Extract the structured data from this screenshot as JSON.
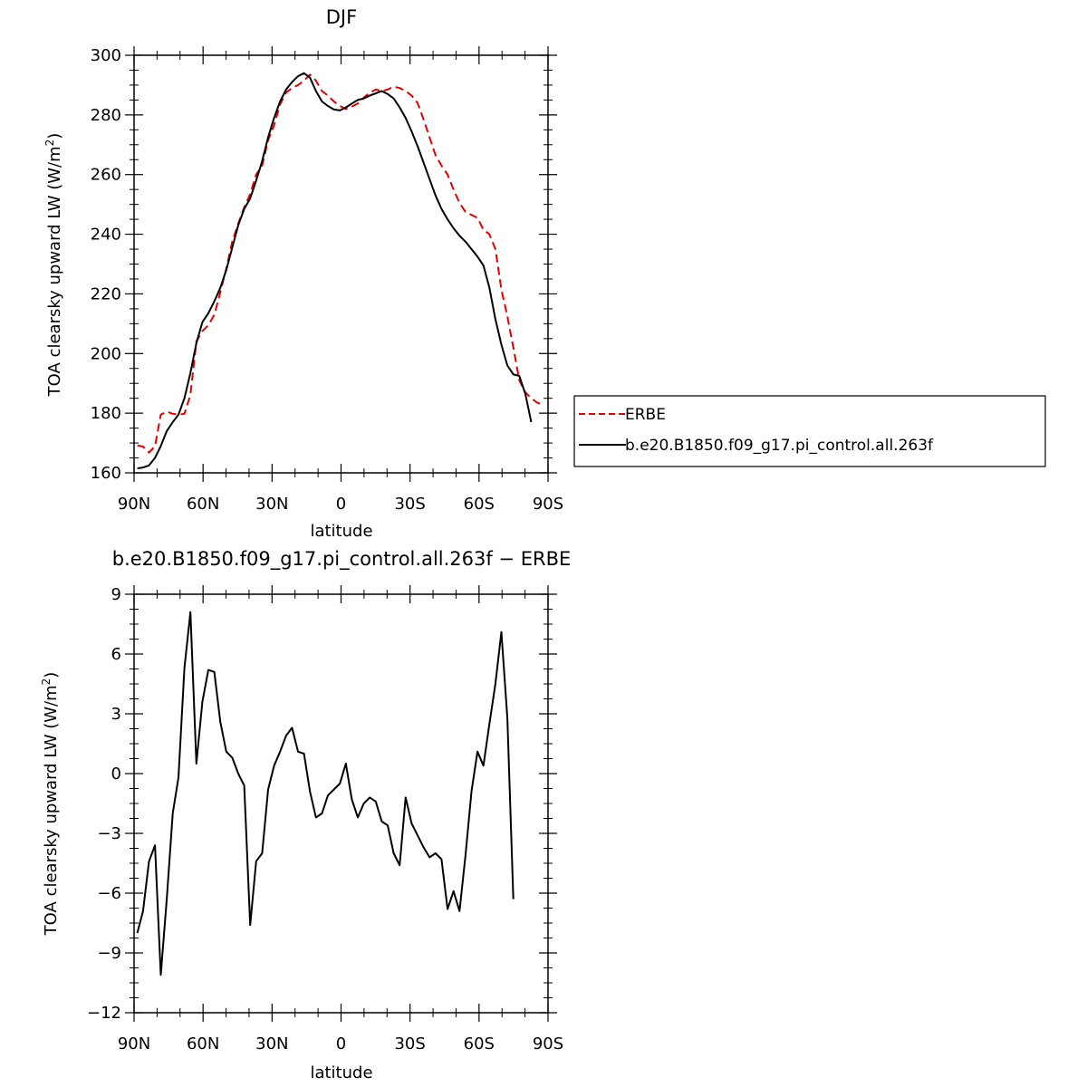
{
  "chart_data": [
    {
      "type": "line",
      "title": "DJF",
      "xlabel": "latitude",
      "ylabel_main": "TOA clearsky upward LW (W/m",
      "ylabel_sup": "2",
      "ylabel_end": ")",
      "xlim": [
        90,
        -90
      ],
      "ylim": [
        160,
        300
      ],
      "yticks": [
        160,
        180,
        200,
        220,
        240,
        260,
        280,
        300
      ],
      "xticks": [
        90,
        60,
        30,
        0,
        -30,
        -60,
        -90
      ],
      "xtick_labels": [
        "90N",
        "60N",
        "30N",
        "0",
        "30S",
        "60S",
        "90S"
      ],
      "grid": false,
      "legend_position": "right",
      "series": [
        {
          "name": "ERBE",
          "color": "#e00000",
          "dash": true,
          "points": [
            [
              88.6,
              169.2
            ],
            [
              86.1,
              168.8
            ],
            [
              83.5,
              166.8
            ],
            [
              80.9,
              168.9
            ],
            [
              78.4,
              179.5
            ],
            [
              75.8,
              180.5
            ],
            [
              73.2,
              179.8
            ],
            [
              70.7,
              179.5
            ],
            [
              68.1,
              179.8
            ],
            [
              65.5,
              186.1
            ],
            [
              62.9,
              204.1
            ],
            [
              60.3,
              207.5
            ],
            [
              57.7,
              209.5
            ],
            [
              55.1,
              213.0
            ],
            [
              52.5,
              220.5
            ],
            [
              49.9,
              228.5
            ],
            [
              47.3,
              237.5
            ],
            [
              44.7,
              243.5
            ],
            [
              42.1,
              249.0
            ],
            [
              39.5,
              253.5
            ],
            [
              36.9,
              260.0
            ],
            [
              34.3,
              263.0
            ],
            [
              31.7,
              271.5
            ],
            [
              29.1,
              276.5
            ],
            [
              26.5,
              283.5
            ],
            [
              23.9,
              287.5
            ],
            [
              21.3,
              289.0
            ],
            [
              18.7,
              290.0
            ],
            [
              16.1,
              291.5
            ],
            [
              13.5,
              293.5
            ],
            [
              10.9,
              291.5
            ],
            [
              8.3,
              288.0
            ],
            [
              5.7,
              286.5
            ],
            [
              3.1,
              284.5
            ],
            [
              0.5,
              283.0
            ],
            [
              -2.1,
              282.0
            ],
            [
              -4.7,
              282.8
            ],
            [
              -7.3,
              283.8
            ],
            [
              -9.9,
              285.8
            ],
            [
              -12.5,
              287.5
            ],
            [
              -15.1,
              288.5
            ],
            [
              -17.7,
              288.0
            ],
            [
              -20.3,
              288.5
            ],
            [
              -22.9,
              289.5
            ],
            [
              -25.5,
              289.0
            ],
            [
              -28.1,
              288.0
            ],
            [
              -30.7,
              286.5
            ],
            [
              -33.3,
              284.0
            ],
            [
              -35.9,
              278.5
            ],
            [
              -38.5,
              272.5
            ],
            [
              -41.1,
              266.5
            ],
            [
              -43.7,
              263.0
            ],
            [
              -46.3,
              260.0
            ],
            [
              -48.9,
              255.0
            ],
            [
              -51.5,
              250.5
            ],
            [
              -54.1,
              247.5
            ],
            [
              -56.7,
              246.5
            ],
            [
              -59.3,
              245.5
            ],
            [
              -61.9,
              241.5
            ],
            [
              -64.5,
              240.0
            ],
            [
              -67.1,
              235.0
            ],
            [
              -69.7,
              221.5
            ],
            [
              -72.3,
              212.5
            ],
            [
              -74.9,
              202.0
            ],
            [
              -77.5,
              191.0
            ],
            [
              -80.1,
              187.0
            ],
            [
              -82.7,
              185.0
            ],
            [
              -85.3,
              183.5
            ],
            [
              -87.9,
              182.8
            ]
          ]
        },
        {
          "name": "b.e20.B1850.f09_g17.pi_control.all.263f",
          "color": "#000000",
          "dash": false,
          "points": [
            [
              88.6,
              161.5
            ],
            [
              86.1,
              161.8
            ],
            [
              83.5,
              162.5
            ],
            [
              80.9,
              165.0
            ],
            [
              78.4,
              169.0
            ],
            [
              75.8,
              174.0
            ],
            [
              73.2,
              177.0
            ],
            [
              70.7,
              179.5
            ],
            [
              68.1,
              185.0
            ],
            [
              65.5,
              193.5
            ],
            [
              62.9,
              203.5
            ],
            [
              60.3,
              210.5
            ],
            [
              57.7,
              213.5
            ],
            [
              55.1,
              217.5
            ],
            [
              52.5,
              222.0
            ],
            [
              49.9,
              228.0
            ],
            [
              47.3,
              235.5
            ],
            [
              44.7,
              243.0
            ],
            [
              42.1,
              248.5
            ],
            [
              39.5,
              252.0
            ],
            [
              36.9,
              258.0
            ],
            [
              34.3,
              264.5
            ],
            [
              31.7,
              272.5
            ],
            [
              29.1,
              279.0
            ],
            [
              26.5,
              284.5
            ],
            [
              23.9,
              288.5
            ],
            [
              21.3,
              291.0
            ],
            [
              18.7,
              293.0
            ],
            [
              16.1,
              294.0
            ],
            [
              13.5,
              292.5
            ],
            [
              10.9,
              288.0
            ],
            [
              8.3,
              284.5
            ],
            [
              5.7,
              283.0
            ],
            [
              3.1,
              281.8
            ],
            [
              0.5,
              281.5
            ],
            [
              -2.1,
              282.5
            ],
            [
              -4.7,
              283.8
            ],
            [
              -7.3,
              285.0
            ],
            [
              -9.9,
              285.5
            ],
            [
              -12.5,
              286.5
            ],
            [
              -15.1,
              287.2
            ],
            [
              -17.7,
              288.0
            ],
            [
              -20.3,
              287.0
            ],
            [
              -22.9,
              285.5
            ],
            [
              -25.5,
              282.5
            ],
            [
              -28.1,
              279.0
            ],
            [
              -30.7,
              274.5
            ],
            [
              -33.3,
              269.5
            ],
            [
              -35.9,
              264.0
            ],
            [
              -38.5,
              258.5
            ],
            [
              -41.1,
              253.0
            ],
            [
              -43.7,
              248.5
            ],
            [
              -46.3,
              245.0
            ],
            [
              -48.9,
              242.0
            ],
            [
              -51.5,
              239.5
            ],
            [
              -54.1,
              237.5
            ],
            [
              -56.7,
              235.0
            ],
            [
              -59.3,
              232.5
            ],
            [
              -61.9,
              229.5
            ],
            [
              -64.5,
              222.0
            ],
            [
              -67.1,
              211.5
            ],
            [
              -69.7,
              203.0
            ],
            [
              -72.3,
              196.0
            ],
            [
              -74.9,
              193.0
            ],
            [
              -77.5,
              192.5
            ],
            [
              -80.1,
              186.5
            ],
            [
              -82.7,
              177.0
            ]
          ]
        }
      ]
    },
    {
      "type": "line",
      "title": "b.e20.B1850.f09_g17.pi_control.all.263f − ERBE",
      "xlabel": "latitude",
      "ylabel_main": "TOA clearsky upward LW (W/m",
      "ylabel_sup": "2",
      "ylabel_end": ")",
      "xlim": [
        90,
        -90
      ],
      "ylim": [
        -12,
        9
      ],
      "yticks": [
        -12,
        -9,
        -6,
        -3,
        0,
        3,
        6,
        9
      ],
      "ytick_labels": [
        "−12",
        "−9",
        "−6",
        "−3",
        "0",
        "3",
        "6",
        "9"
      ],
      "xticks": [
        90,
        60,
        30,
        0,
        -30,
        -60,
        -90
      ],
      "xtick_labels": [
        "90N",
        "60N",
        "30N",
        "0",
        "30S",
        "60S",
        "90S"
      ],
      "grid": false,
      "series": [
        {
          "color": "#000000",
          "dash": false,
          "points": [
            [
              88.6,
              -8.0
            ],
            [
              86.1,
              -6.9
            ],
            [
              83.5,
              -4.4
            ],
            [
              80.9,
              -3.6
            ],
            [
              78.4,
              -10.1
            ],
            [
              75.8,
              -6.3
            ],
            [
              73.2,
              -2.0
            ],
            [
              70.7,
              -0.2
            ],
            [
              68.1,
              5.3
            ],
            [
              65.5,
              8.1
            ],
            [
              62.9,
              0.5
            ],
            [
              60.3,
              3.6
            ],
            [
              57.7,
              5.2
            ],
            [
              55.1,
              5.1
            ],
            [
              52.5,
              2.6
            ],
            [
              49.9,
              1.1
            ],
            [
              47.3,
              0.8
            ],
            [
              44.7,
              0.0
            ],
            [
              42.1,
              -0.6
            ],
            [
              39.5,
              -7.6
            ],
            [
              36.9,
              -4.4
            ],
            [
              34.3,
              -4.0
            ],
            [
              31.7,
              -0.8
            ],
            [
              29.1,
              0.4
            ],
            [
              26.5,
              1.1
            ],
            [
              23.9,
              1.9
            ],
            [
              21.3,
              2.3
            ],
            [
              18.7,
              1.1
            ],
            [
              16.1,
              1.0
            ],
            [
              13.5,
              -0.9
            ],
            [
              10.9,
              -2.2
            ],
            [
              8.3,
              -2.0
            ],
            [
              5.7,
              -1.1
            ],
            [
              3.1,
              -0.8
            ],
            [
              0.5,
              -0.5
            ],
            [
              -2.1,
              0.5
            ],
            [
              -4.7,
              -1.3
            ],
            [
              -7.3,
              -2.2
            ],
            [
              -9.9,
              -1.5
            ],
            [
              -12.5,
              -1.2
            ],
            [
              -15.1,
              -1.4
            ],
            [
              -17.7,
              -2.4
            ],
            [
              -20.3,
              -2.6
            ],
            [
              -22.9,
              -4.0
            ],
            [
              -25.5,
              -4.6
            ],
            [
              -28.1,
              -1.2
            ],
            [
              -30.7,
              -2.5
            ],
            [
              -33.3,
              -3.1
            ],
            [
              -35.9,
              -3.7
            ],
            [
              -38.5,
              -4.2
            ],
            [
              -41.1,
              -4.0
            ],
            [
              -43.7,
              -4.3
            ],
            [
              -46.3,
              -6.8
            ],
            [
              -48.9,
              -5.9
            ],
            [
              -51.5,
              -6.9
            ],
            [
              -54.1,
              -4.1
            ],
            [
              -56.7,
              -0.9
            ],
            [
              -59.3,
              1.1
            ],
            [
              -61.9,
              0.4
            ],
            [
              -64.5,
              2.5
            ],
            [
              -67.1,
              4.5
            ],
            [
              -69.7,
              7.1
            ],
            [
              -72.3,
              2.8
            ],
            [
              -74.9,
              -6.3
            ]
          ]
        }
      ]
    }
  ]
}
